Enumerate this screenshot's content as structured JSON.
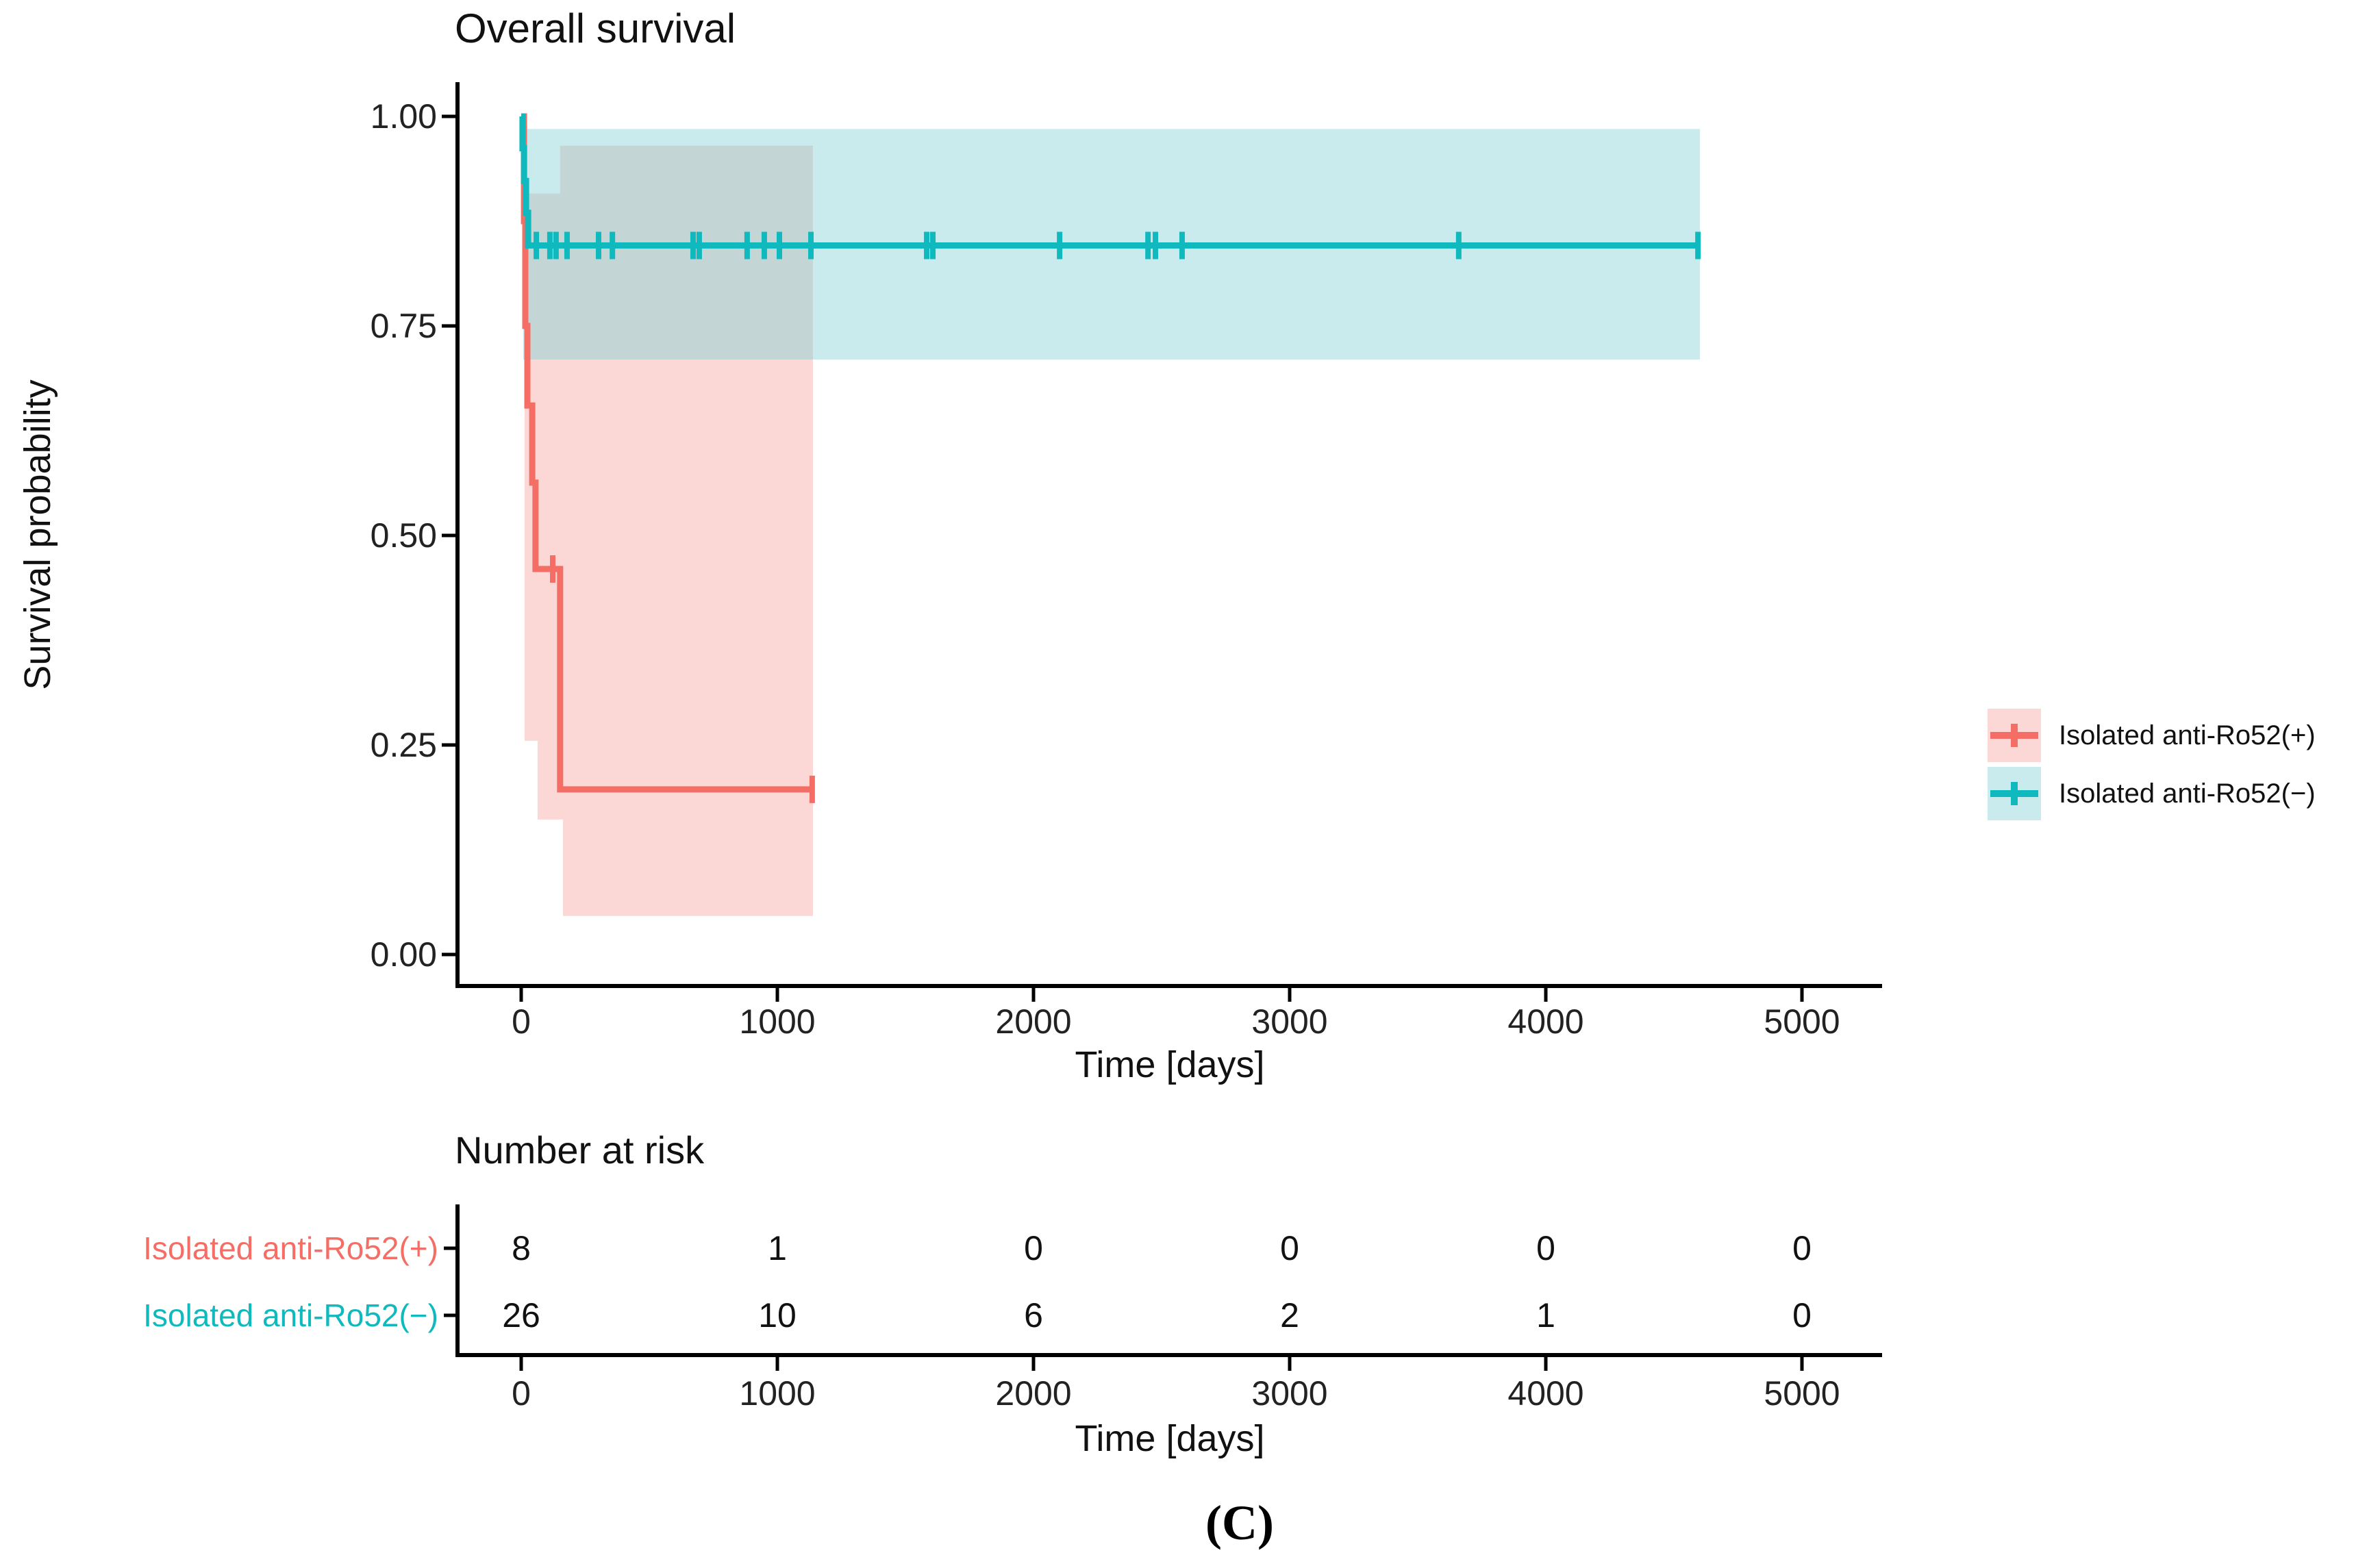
{
  "figure": {
    "title": "Overall survival",
    "panel_label": "(C)",
    "y_axis": {
      "label": "Survival probability",
      "tick_labels": [
        "1.00",
        "0.75",
        "0.50",
        "0.25",
        "0.00"
      ],
      "tick_values": [
        1.0,
        0.75,
        0.5,
        0.25,
        0.0
      ]
    },
    "x_axis": {
      "label": "Time [days]",
      "tick_labels": [
        "0",
        "1000",
        "2000",
        "3000",
        "4000",
        "5000"
      ],
      "tick_values": [
        0,
        1000,
        2000,
        3000,
        4000,
        5000
      ]
    },
    "legend": {
      "entries": [
        {
          "label": "Isolated anti-Ro52(+)",
          "color": "#F46E66",
          "fill": "#FBD8D5"
        },
        {
          "label": "Isolated anti-Ro52(−)",
          "color": "#0FB9BE",
          "fill": "#C9EBED"
        }
      ]
    },
    "risk_table": {
      "title": "Number at risk",
      "x_axis": {
        "label": "Time [days]",
        "tick_labels": [
          "0",
          "1000",
          "2000",
          "3000",
          "4000",
          "5000"
        ]
      },
      "rows": [
        {
          "label": "Isolated anti-Ro52(+)",
          "color": "#F46E66",
          "values": [
            "8",
            "1",
            "0",
            "0",
            "0",
            "0"
          ]
        },
        {
          "label": "Isolated anti-Ro52(−)",
          "color": "#0FB9BE",
          "values": [
            "26",
            "10",
            "6",
            "2",
            "1",
            "0"
          ]
        }
      ]
    }
  },
  "chart_data": {
    "type": "line",
    "subtype": "kaplan-meier-step",
    "title": "Overall survival",
    "xlabel": "Time [days]",
    "ylabel": "Survival probability",
    "xlim": [
      0,
      5300
    ],
    "ylim": [
      0,
      1
    ],
    "x_ticks": [
      0,
      1000,
      2000,
      3000,
      4000,
      5000
    ],
    "y_ticks": [
      1.0,
      0.75,
      0.5,
      0.25,
      0.0
    ],
    "grid": false,
    "legend_position": "right",
    "ci_overlap_fill": "#C4D5D6",
    "series": [
      {
        "name": "Isolated anti-Ro52(+)",
        "color": "#F46E66",
        "ci_fill": "#FBD8D5",
        "n_at_risk": [
          8,
          1,
          0,
          0,
          0,
          0
        ],
        "steps": [
          [
            0,
            1.0
          ],
          [
            11,
            0.875
          ],
          [
            16,
            0.75
          ],
          [
            24,
            0.655
          ],
          [
            43,
            0.563
          ],
          [
            56,
            0.46
          ],
          [
            152,
            0.197
          ],
          [
            1139,
            0.197
          ]
        ],
        "censors": [
          [
            123,
            0.46
          ],
          [
            1136,
            0.197
          ]
        ],
        "ci_upper": [
          [
            13,
            0.908
          ],
          [
            152,
            0.908
          ],
          [
            152,
            0.965
          ],
          [
            1139,
            0.965
          ]
        ],
        "ci_lower": [
          [
            13,
            0.255
          ],
          [
            64,
            0.255
          ],
          [
            64,
            0.161
          ],
          [
            163,
            0.161
          ],
          [
            163,
            0.046
          ],
          [
            1139,
            0.046
          ]
        ]
      },
      {
        "name": "Isolated anti-Ro52(−)",
        "color": "#0FB9BE",
        "ci_fill": "#C9EBED",
        "n_at_risk": [
          26,
          10,
          6,
          2,
          1,
          0
        ],
        "steps": [
          [
            0,
            1.0
          ],
          [
            5,
            0.962
          ],
          [
            11,
            0.923
          ],
          [
            19,
            0.885
          ],
          [
            27,
            0.846
          ],
          [
            4602,
            0.846
          ]
        ],
        "censors": [
          [
            59,
            0.846
          ],
          [
            112,
            0.846
          ],
          [
            136,
            0.846
          ],
          [
            179,
            0.846
          ],
          [
            302,
            0.846
          ],
          [
            356,
            0.846
          ],
          [
            671,
            0.846
          ],
          [
            695,
            0.846
          ],
          [
            882,
            0.846
          ],
          [
            949,
            0.846
          ],
          [
            1008,
            0.846
          ],
          [
            1131,
            0.846
          ],
          [
            1583,
            0.846
          ],
          [
            1607,
            0.846
          ],
          [
            2102,
            0.846
          ],
          [
            2447,
            0.846
          ],
          [
            2476,
            0.846
          ],
          [
            2580,
            0.846
          ],
          [
            3660,
            0.846
          ],
          [
            4594,
            0.846
          ]
        ],
        "ci_upper": [
          [
            8,
            0.985
          ],
          [
            4602,
            0.985
          ]
        ],
        "ci_lower": [
          [
            8,
            0.71
          ],
          [
            4602,
            0.71
          ]
        ]
      }
    ]
  }
}
